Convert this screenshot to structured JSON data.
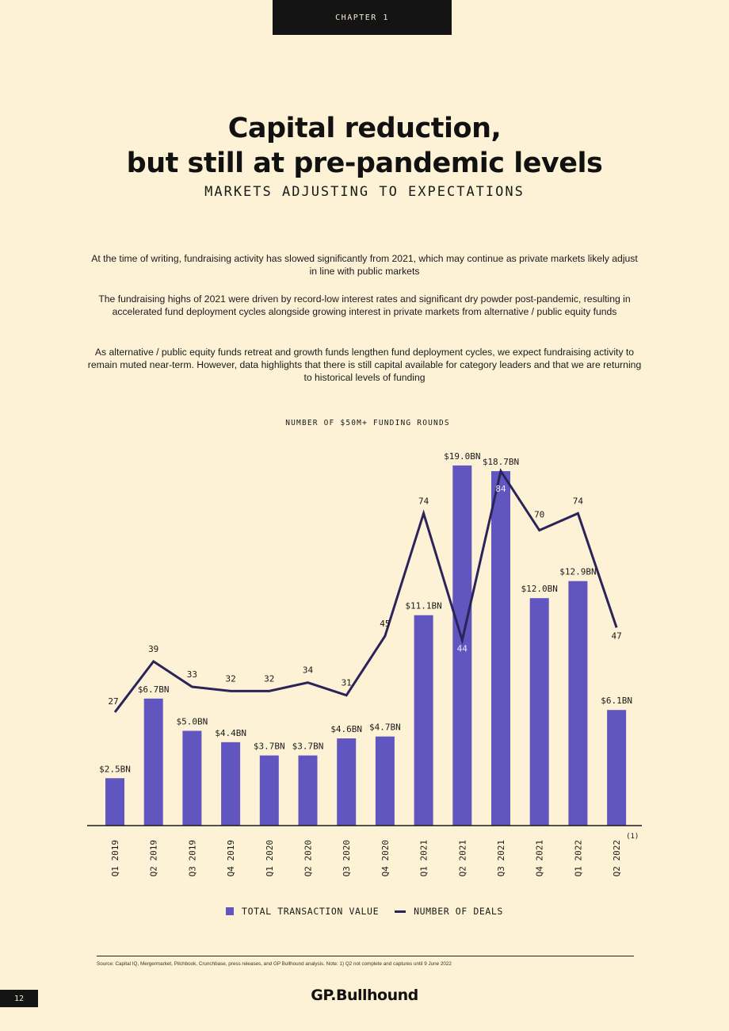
{
  "header": {
    "chapter": "CHAPTER 1"
  },
  "title": {
    "line1": "Capital reduction,",
    "line2": "but still at pre-pandemic levels"
  },
  "subtitle": "MARKETS ADJUSTING TO EXPECTATIONS",
  "paragraphs": [
    "At the time of writing, fundraising activity has slowed significantly from 2021, which may continue as private markets likely adjust in line with public markets",
    "The fundraising highs of 2021 were driven by record-low interest rates and significant dry powder post-pandemic, resulting in accelerated fund deployment cycles alongside growing interest in private markets from alternative / public equity funds",
    "As alternative / public equity funds retreat and growth funds lengthen fund deployment cycles, we expect fundraising activity to remain muted near-term. However, data highlights that there is still capital available for category leaders and that we are returning to historical levels of funding"
  ],
  "chart_data": {
    "type": "bar",
    "title": "NUMBER OF $50M+ FUNDING ROUNDS",
    "categories": [
      "Q1 2019",
      "Q2 2019",
      "Q3 2019",
      "Q4 2019",
      "Q1 2020",
      "Q2 2020",
      "Q3 2020",
      "Q4 2020",
      "Q1 2021",
      "Q2 2021",
      "Q3 2021",
      "Q4 2021",
      "Q1 2022",
      "Q2 2022"
    ],
    "category_note": {
      "index": 13,
      "text": "(1)"
    },
    "series": [
      {
        "name": "TOTAL TRANSACTION VALUE",
        "type": "bar",
        "values": [
          2.5,
          6.7,
          5.0,
          4.4,
          3.7,
          3.7,
          4.6,
          4.7,
          11.1,
          19.0,
          18.7,
          12.0,
          12.9,
          6.1
        ],
        "labels": [
          "$2.5BN",
          "$6.7BN",
          "$5.0BN",
          "$4.4BN",
          "$3.7BN",
          "$3.7BN",
          "$4.6BN",
          "$4.7BN",
          "$11.1BN",
          "$19.0BN",
          "$18.7BN",
          "$12.0BN",
          "$12.9BN",
          "$6.1BN"
        ],
        "color": "#6155c0"
      },
      {
        "name": "NUMBER OF DEALS",
        "type": "line",
        "values": [
          27,
          39,
          33,
          32,
          32,
          34,
          31,
          45,
          74,
          44,
          84,
          70,
          74,
          47
        ],
        "color": "#2b2459"
      }
    ],
    "bar_ylim": [
      0,
      20
    ],
    "line_ylim": [
      0,
      90
    ],
    "grid": false,
    "legend_position": "bottom-center"
  },
  "legend": {
    "bar_label": "TOTAL TRANSACTION VALUE",
    "line_label": "NUMBER OF DEALS"
  },
  "source": "Source: Capital IQ, Mergermarket, Pitchbook, Crunchbase, press releases, and GP Bullhound analysis. Note: 1) Q2 not complete and captures until 9 June 2022",
  "footer": {
    "page_number": "12",
    "logo_text": "GP.Bullhound"
  }
}
